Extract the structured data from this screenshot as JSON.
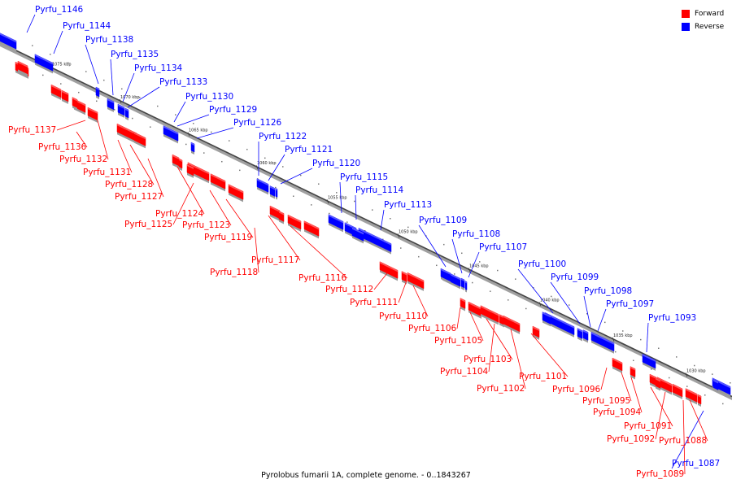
{
  "caption": "Pyrolobus fumarii 1A, complete genome. - 0..1843267",
  "legend": {
    "forward_label": "Forward",
    "reverse_label": "Reverse",
    "forward_color": "#ff0000",
    "reverse_color": "#0000ff"
  },
  "colors": {
    "forward": "#ff0000",
    "reverse": "#0000ff",
    "backbone": "#888888"
  },
  "ticks": [
    {
      "label": "1075 kbp"
    },
    {
      "label": "1070 kbp"
    },
    {
      "label": "1065 kbp"
    },
    {
      "label": "1060 kbp"
    },
    {
      "label": "1055 kbp"
    },
    {
      "label": "1050 kbp"
    },
    {
      "label": "1045 kbp"
    },
    {
      "label": "1040 kbp"
    },
    {
      "label": "1035 kbp"
    },
    {
      "label": "1030 kbp"
    }
  ],
  "genes": [
    {
      "name": "Pyrfu_1146",
      "strand": "reverse"
    },
    {
      "name": "Pyrfu_1144",
      "strand": "reverse"
    },
    {
      "name": "Pyrfu_1138",
      "strand": "reverse"
    },
    {
      "name": "Pyrfu_1135",
      "strand": "reverse"
    },
    {
      "name": "Pyrfu_1134",
      "strand": "reverse"
    },
    {
      "name": "Pyrfu_1133",
      "strand": "reverse"
    },
    {
      "name": "Pyrfu_1130",
      "strand": "reverse"
    },
    {
      "name": "Pyrfu_1129",
      "strand": "reverse"
    },
    {
      "name": "Pyrfu_1126",
      "strand": "reverse"
    },
    {
      "name": "Pyrfu_1122",
      "strand": "reverse"
    },
    {
      "name": "Pyrfu_1121",
      "strand": "reverse"
    },
    {
      "name": "Pyrfu_1120",
      "strand": "reverse"
    },
    {
      "name": "Pyrfu_1115",
      "strand": "reverse"
    },
    {
      "name": "Pyrfu_1114",
      "strand": "reverse"
    },
    {
      "name": "Pyrfu_1113",
      "strand": "reverse"
    },
    {
      "name": "Pyrfu_1109",
      "strand": "reverse"
    },
    {
      "name": "Pyrfu_1108",
      "strand": "reverse"
    },
    {
      "name": "Pyrfu_1107",
      "strand": "reverse"
    },
    {
      "name": "Pyrfu_1100",
      "strand": "reverse"
    },
    {
      "name": "Pyrfu_1099",
      "strand": "reverse"
    },
    {
      "name": "Pyrfu_1098",
      "strand": "reverse"
    },
    {
      "name": "Pyrfu_1097",
      "strand": "reverse"
    },
    {
      "name": "Pyrfu_1093",
      "strand": "reverse"
    },
    {
      "name": "Pyrfu_1087",
      "strand": "reverse"
    },
    {
      "name": "Pyrfu_1137",
      "strand": "forward"
    },
    {
      "name": "Pyrfu_1136",
      "strand": "forward"
    },
    {
      "name": "Pyrfu_1132",
      "strand": "forward"
    },
    {
      "name": "Pyrfu_1131",
      "strand": "forward"
    },
    {
      "name": "Pyrfu_1128",
      "strand": "forward"
    },
    {
      "name": "Pyrfu_1127",
      "strand": "forward"
    },
    {
      "name": "Pyrfu_1124",
      "strand": "forward"
    },
    {
      "name": "Pyrfu_1125",
      "strand": "forward"
    },
    {
      "name": "Pyrfu_1123",
      "strand": "forward"
    },
    {
      "name": "Pyrfu_1119",
      "strand": "forward"
    },
    {
      "name": "Pyrfu_1117",
      "strand": "forward"
    },
    {
      "name": "Pyrfu_1118",
      "strand": "forward"
    },
    {
      "name": "Pyrfu_1116",
      "strand": "forward"
    },
    {
      "name": "Pyrfu_1112",
      "strand": "forward"
    },
    {
      "name": "Pyrfu_1111",
      "strand": "forward"
    },
    {
      "name": "Pyrfu_1110",
      "strand": "forward"
    },
    {
      "name": "Pyrfu_1106",
      "strand": "forward"
    },
    {
      "name": "Pyrfu_1105",
      "strand": "forward"
    },
    {
      "name": "Pyrfu_1103",
      "strand": "forward"
    },
    {
      "name": "Pyrfu_1104",
      "strand": "forward"
    },
    {
      "name": "Pyrfu_1102",
      "strand": "forward"
    },
    {
      "name": "Pyrfu_1101",
      "strand": "forward"
    },
    {
      "name": "Pyrfu_1096",
      "strand": "forward"
    },
    {
      "name": "Pyrfu_1095",
      "strand": "forward"
    },
    {
      "name": "Pyrfu_1094",
      "strand": "forward"
    },
    {
      "name": "Pyrfu_1091",
      "strand": "forward"
    },
    {
      "name": "Pyrfu_1092",
      "strand": "forward"
    },
    {
      "name": "Pyrfu_1088",
      "strand": "forward"
    },
    {
      "name": "Pyrfu_1089",
      "strand": "forward"
    }
  ]
}
